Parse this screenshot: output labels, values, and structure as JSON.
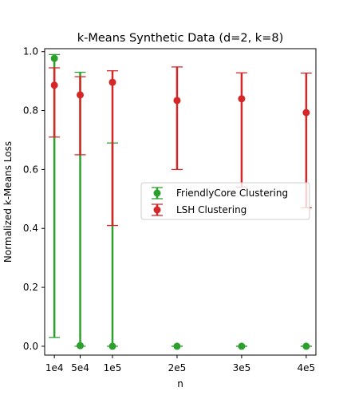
{
  "chart_data": {
    "type": "scatter",
    "title": "k-Means Synthetic Data (d=2, k=8)",
    "xlabel": "n",
    "ylabel": "Normalized k-Means Loss",
    "categories": [
      "1e4",
      "5e4",
      "1e5",
      "2e5",
      "3e5",
      "4e5"
    ],
    "x": [
      10000,
      50000,
      100000,
      200000,
      300000,
      400000
    ],
    "xlim": [
      -5000,
      415000
    ],
    "ylim": [
      -0.03,
      1.01
    ],
    "yticks": [
      "0.0",
      "0.2",
      "0.4",
      "0.6",
      "0.8",
      "1.0"
    ],
    "ytick_values": [
      0.0,
      0.2,
      0.4,
      0.6,
      0.8,
      1.0
    ],
    "grid": false,
    "legend_placement": "center-right",
    "series": [
      {
        "name": "FriendlyCore Clustering",
        "color": "#2ca02c",
        "values": [
          0.977,
          0.002,
          0.0,
          0.0,
          0.0,
          0.0
        ],
        "err_low": [
          0.03,
          0.0,
          0.0,
          0.0,
          0.0,
          0.0
        ],
        "err_high": [
          0.99,
          0.93,
          0.69,
          0.0,
          0.0,
          0.0
        ]
      },
      {
        "name": "LSH Clustering",
        "color": "#d62728",
        "values": [
          0.886,
          0.853,
          0.896,
          0.834,
          0.84,
          0.793
        ],
        "err_low": [
          0.71,
          0.65,
          0.41,
          0.6,
          0.54,
          0.47
        ],
        "err_high": [
          0.945,
          0.915,
          0.935,
          0.948,
          0.928,
          0.927
        ]
      }
    ]
  }
}
